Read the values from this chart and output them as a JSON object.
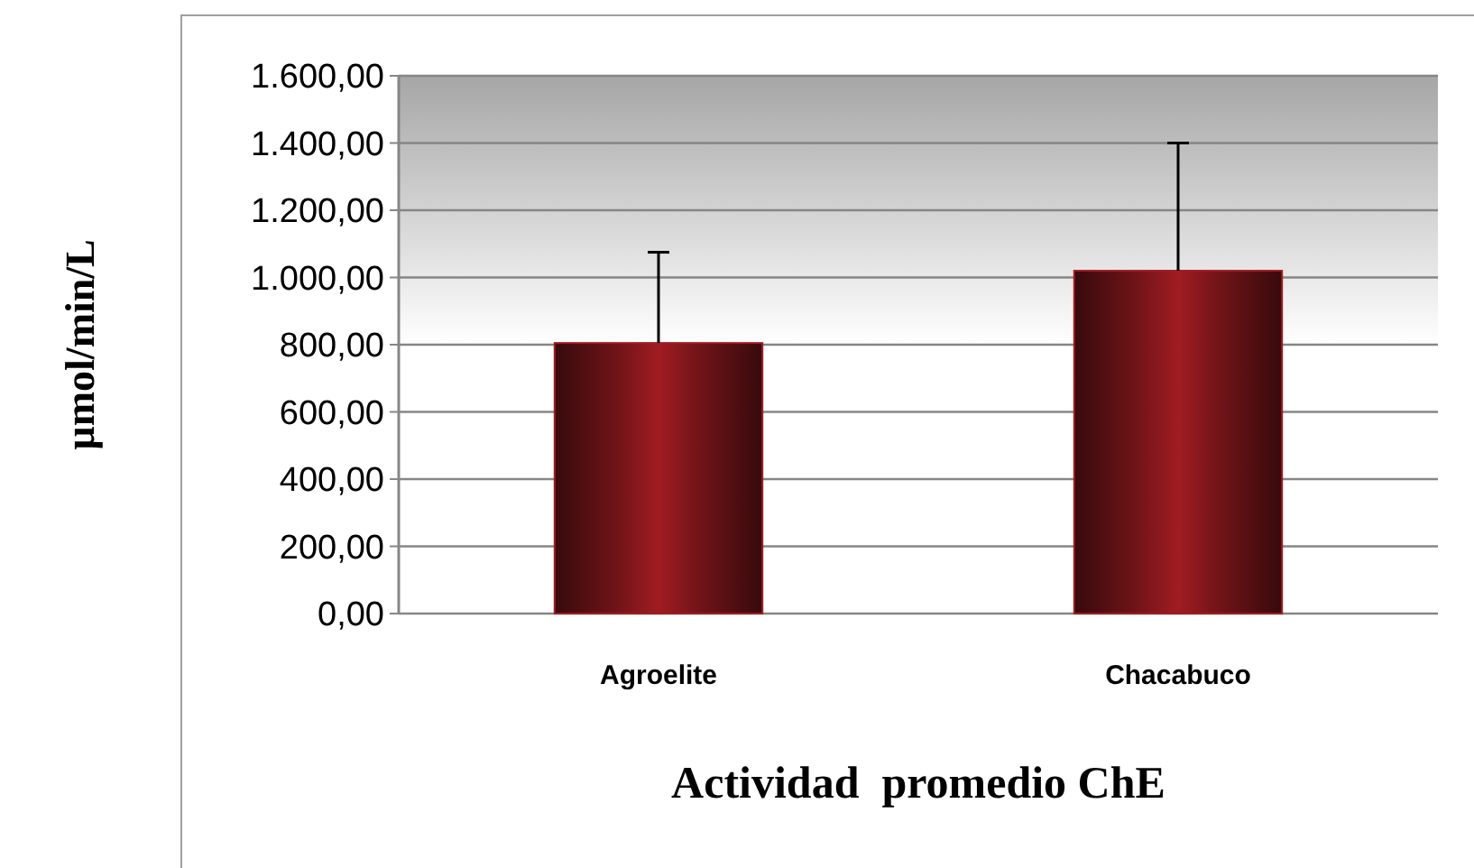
{
  "chart_data": {
    "type": "bar",
    "xlabel": "Actividad  promedio ChE",
    "ylabel": "µmol/min/L",
    "categories": [
      "Agroelite",
      "Chacabuco"
    ],
    "values": [
      805,
      1020
    ],
    "errors": [
      [
        805,
        1075
      ],
      [
        1020,
        1400
      ]
    ],
    "color": "#a01c22",
    "ylim": [
      0,
      1600
    ],
    "yticks": [
      {
        "value": 0,
        "label": "0,00"
      },
      {
        "value": 200,
        "label": "200,00"
      },
      {
        "value": 400,
        "label": "400,00"
      },
      {
        "value": 600,
        "label": "600,00"
      },
      {
        "value": 800,
        "label": "800,00"
      },
      {
        "value": 1000,
        "label": "1.000,00"
      },
      {
        "value": 1200,
        "label": "1.200,00"
      },
      {
        "value": 1400,
        "label": "1.400,00"
      },
      {
        "value": 1600,
        "label": "1.600,00"
      }
    ],
    "grid": "y"
  }
}
